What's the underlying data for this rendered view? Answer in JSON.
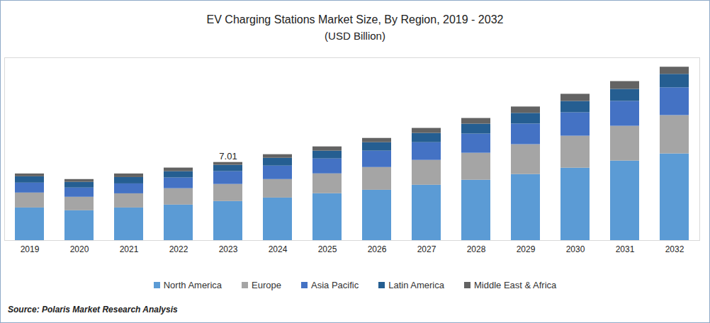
{
  "chart_data": {
    "type": "bar",
    "title": "EV Charging Stations Market Size, By Region, 2019 - 2032",
    "subtitle": "(USD Billion)",
    "source": "Source: Polaris Market Research Analysis",
    "categories": [
      "2019",
      "2020",
      "2021",
      "2022",
      "2023",
      "2024",
      "2025",
      "2026",
      "2027",
      "2028",
      "2029",
      "2030",
      "2031",
      "2032"
    ],
    "series": [
      {
        "name": "North America",
        "color": "#5b9bd5",
        "values": [
          2.93,
          2.68,
          2.93,
          3.19,
          3.51,
          3.82,
          4.21,
          4.52,
          4.97,
          5.42,
          5.93,
          6.5,
          7.14,
          7.78
        ]
      },
      {
        "name": "Europe",
        "color": "#a5a5a5",
        "values": [
          1.34,
          1.21,
          1.27,
          1.47,
          1.53,
          1.66,
          1.78,
          2.04,
          2.23,
          2.42,
          2.68,
          2.87,
          3.12,
          3.44
        ]
      },
      {
        "name": "Asia Pacific",
        "color": "#4472c4",
        "values": [
          0.89,
          0.83,
          0.89,
          0.96,
          1.15,
          1.21,
          1.34,
          1.47,
          1.59,
          1.72,
          1.85,
          2.1,
          2.23,
          2.49
        ]
      },
      {
        "name": "Latin America",
        "color": "#255e91",
        "values": [
          0.57,
          0.51,
          0.57,
          0.57,
          0.57,
          0.7,
          0.7,
          0.76,
          0.83,
          0.89,
          0.96,
          1.02,
          1.08,
          1.21
        ]
      },
      {
        "name": "Middle East & Africa",
        "color": "#636363",
        "values": [
          0.25,
          0.25,
          0.32,
          0.32,
          0.25,
          0.32,
          0.38,
          0.38,
          0.45,
          0.51,
          0.57,
          0.64,
          0.7,
          0.64
        ]
      }
    ],
    "annotations": [
      {
        "x": "2023",
        "y": 7.01,
        "text": "7.01"
      }
    ],
    "ylim": [
      0,
      16.4
    ],
    "yticks": [],
    "stacked": true,
    "grid": false,
    "legend": "bottom",
    "tick_labels": "x"
  }
}
